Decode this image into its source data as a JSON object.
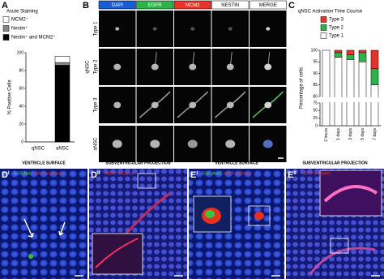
{
  "chart_data": [
    {
      "type": "stacked_bar",
      "label": "A",
      "title": "Acute Staining",
      "ylabel": "% Positive Cells",
      "categories": [
        "qNSC",
        "aNSC"
      ],
      "series": [
        {
          "name": "Nestin⁺ and MCM2⁺",
          "color": "#000000",
          "values": [
            0,
            86
          ]
        },
        {
          "name": "Nestin⁺",
          "color": "#888888",
          "values": [
            0,
            3
          ]
        },
        {
          "name": "MCM2⁺",
          "color": "#ffffff",
          "values": [
            0,
            7
          ]
        }
      ],
      "ylim": [
        0,
        100
      ],
      "yticks": [
        0,
        20,
        40,
        60,
        80,
        100
      ]
    },
    {
      "type": "stacked_bar",
      "label": "C",
      "title": "qNSC Activation Time Course",
      "ylabel": "Percentage of cells",
      "xlabel": "Time post plating",
      "categories": [
        "2 hours",
        "1 days",
        "3 days",
        "5 days",
        "7 days"
      ],
      "series": [
        {
          "name": "Type 1",
          "color": "#ffffff",
          "values": [
            100,
            97,
            96,
            95,
            85
          ]
        },
        {
          "name": "Type 2",
          "color": "#2db34a",
          "values": [
            0,
            2,
            2,
            4,
            7
          ]
        },
        {
          "name": "Type 3",
          "color": "#e8322a",
          "values": [
            0,
            1,
            2,
            1,
            8
          ]
        }
      ],
      "ylim": [
        0,
        100
      ],
      "ybreak": [
        75,
        80
      ],
      "yticks": [
        0,
        25,
        50,
        75,
        80,
        85,
        90,
        95,
        100
      ]
    }
  ],
  "panel_b": {
    "label": "B",
    "channels": [
      "DAPI",
      "EGFR",
      "MCM2",
      "NESTIN",
      "MERGE"
    ],
    "group": "qNSC",
    "rows": [
      "Type 1",
      "Type 2",
      "Type 3",
      "aNSC"
    ]
  },
  "bottom_panels": [
    {
      "label": "D",
      "sup": "I",
      "title": "VENTRICLE SURFACE",
      "stains": [
        "EGF-A647",
        "mRFP-mCherry"
      ]
    },
    {
      "label": "D",
      "sup": "II",
      "title": "SUBVENTRICULAR PROJECTION",
      "stains": [
        "mRFP-mCherry"
      ]
    },
    {
      "label": "E",
      "sup": "I",
      "title": "VENTRICLE SURFACE",
      "stains": [
        "EGF-A647",
        "mRFP-mCherry"
      ]
    },
    {
      "label": "E",
      "sup": "II",
      "title": "SUBVENTRICULAR PROJECTION",
      "stains": [
        "mRFP-mCherry"
      ]
    }
  ]
}
